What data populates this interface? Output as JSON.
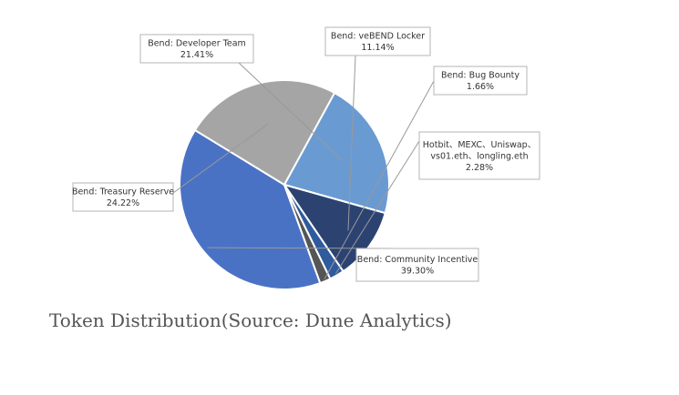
{
  "chart_data": {
    "type": "pie",
    "title": "",
    "legend": "none",
    "slices": [
      {
        "label": "Bend: Community Incentive",
        "value": 39.3,
        "display": "39.30%",
        "color": "#4a72c4"
      },
      {
        "label": "Bend: Treasury Reserve",
        "value": 24.22,
        "display": "24.22%",
        "color": "#a5a5a5"
      },
      {
        "label": "Bend: Developer Team",
        "value": 21.41,
        "display": "21.41%",
        "color": "#6a9ad2"
      },
      {
        "label": "Bend: veBEND Locker",
        "value": 11.14,
        "display": "11.14%",
        "color": "#2c4372"
      },
      {
        "label": "Bend: Bug Bounty",
        "value": 1.66,
        "display": "1.66%",
        "color": "#555555"
      },
      {
        "label": "Hotbit、MEXC、Uniswap、vs01.eth、longling.eth",
        "label_lines": [
          "Hotbit、MEXC、Uniswap、",
          "vs01.eth、longling.eth"
        ],
        "value": 2.28,
        "display": "2.28%",
        "color": "#2f5b9e"
      }
    ]
  },
  "caption": "Token Distribution(Source: Dune Analytics)"
}
